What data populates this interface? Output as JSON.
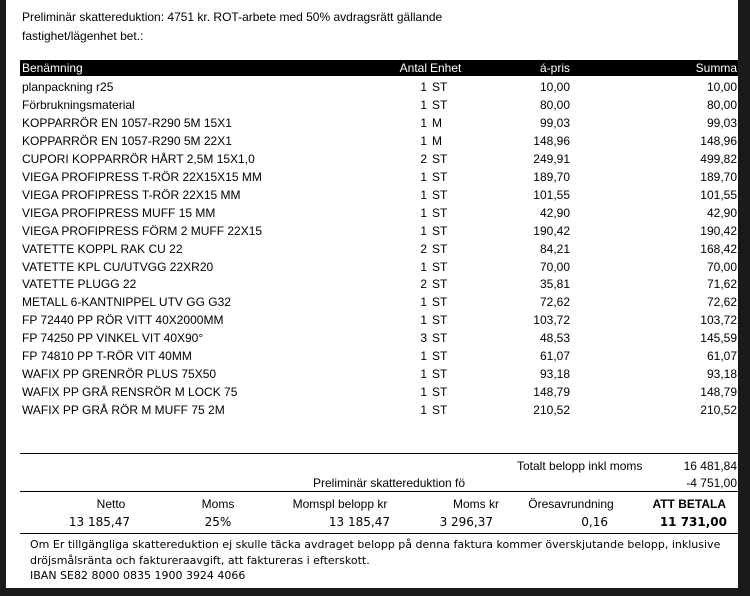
{
  "header": {
    "line1": "Preliminär skattereduktion: 4751 kr. ROT-arbete med 50% avdragsrätt gällande",
    "line2": "fastighet/lägenhet bet.:"
  },
  "table": {
    "columns": [
      "Benämning",
      "Antal",
      "Enhet",
      "á-pris",
      "Summa"
    ],
    "rows": [
      [
        "planpackning r25",
        "1",
        "ST",
        "10,00",
        "10,00"
      ],
      [
        "Förbrukningsmaterial",
        "1",
        "ST",
        "80,00",
        "80,00"
      ],
      [
        "KOPPARRÖR EN 1057-R290 5M 15X1",
        "1",
        "M",
        "99,03",
        "99,03"
      ],
      [
        "KOPPARRÖR EN 1057-R290 5M 22X1",
        "1",
        "M",
        "148,96",
        "148,96"
      ],
      [
        "CUPORI KOPPARRÖR HÅRT  2,5M 15X1,0",
        "2",
        "ST",
        "249,91",
        "499,82"
      ],
      [
        "VIEGA PROFIPRESS T-RÖR 22X15X15 MM",
        "1",
        "ST",
        "189,70",
        "189,70"
      ],
      [
        "VIEGA PROFIPRESS T-RÖR 22X15 MM",
        "1",
        "ST",
        "101,55",
        "101,55"
      ],
      [
        "VIEGA PROFIPRESS MUFF 15 MM",
        "1",
        "ST",
        "42,90",
        "42,90"
      ],
      [
        "VIEGA PROFIPRESS FÖRM 2 MUFF 22X15",
        "1",
        "ST",
        "190,42",
        "190,42"
      ],
      [
        "VATETTE KOPPL RAK CU 22",
        "2",
        "ST",
        "84,21",
        "168,42"
      ],
      [
        "VATETTE KPL CU/UTVGG 22XR20",
        "1",
        "ST",
        "70,00",
        "70,00"
      ],
      [
        "VATETTE PLUGG 22",
        "2",
        "ST",
        "35,81",
        "71,62"
      ],
      [
        "METALL 6-KANTNIPPEL UTV GG G32",
        "1",
        "ST",
        "72,62",
        "72,62"
      ],
      [
        "FP 72440 PP RÖR VITT 40X2000MM",
        "1",
        "ST",
        "103,72",
        "103,72"
      ],
      [
        "FP 74250 PP VINKEL VIT 40X90°",
        "3",
        "ST",
        "48,53",
        "145,59"
      ],
      [
        "FP 74810 PP T-RÖR VIT 40MM",
        "1",
        "ST",
        "61,07",
        "61,07"
      ],
      [
        "WAFIX PP GRENRÖR PLUS 75X50",
        "1",
        "ST",
        "93,18",
        "93,18"
      ],
      [
        "WAFIX PP GRÅ RENSRÖR M LOCK 75",
        "1",
        "ST",
        "148,79",
        "148,79"
      ],
      [
        "WAFIX PP GRÅ RÖR M MUFF 75 2M",
        "1",
        "ST",
        "210,52",
        "210,52"
      ]
    ]
  },
  "totals": {
    "total_label": "Totalt belopp inkl moms",
    "total_value": "16 481,84",
    "reduction_label": "Preliminär skattereduktion fö",
    "reduction_value": "-4 751,00"
  },
  "summary": {
    "labels": [
      "Netto",
      "Moms",
      "Momspl belopp kr",
      "Moms kr",
      "Öresavrundning",
      "ATT BETALA"
    ],
    "values": [
      "13 185,47",
      "25%",
      "13 185,47",
      "3 296,37",
      "0,16",
      "11 731,00"
    ]
  },
  "footer": {
    "line1": "Om Er tillgängliga skattereduktion ej skulle täcka avdraget belopp på denna faktura kommer överskjutande belopp, inklusive",
    "line2": "dröjsmålsränta och faktureraavgift, att faktureras i efterskott.",
    "line3": "IBAN SE82 8000 0835 1900 3924 4066"
  }
}
